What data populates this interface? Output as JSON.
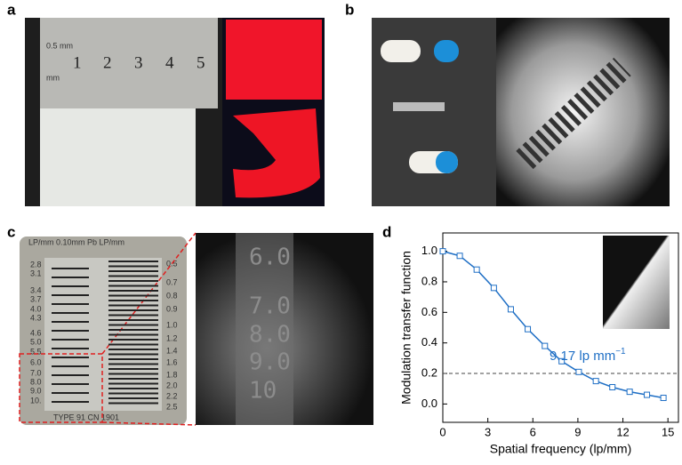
{
  "panels": {
    "a": "a",
    "b": "b",
    "c": "c",
    "d": "d"
  },
  "photo_a": {
    "ruler_numbers": [
      "1",
      "2",
      "3",
      "4",
      "5"
    ],
    "ruler_scale": "0.5 mm",
    "ruler_unit": "mm"
  },
  "photo_c": {
    "gauge_top": "LP/mm  0.10mm  Pb  LP/mm",
    "gauge_bottom": "TYPE 91    CN 1901",
    "left_labels": [
      "2.8",
      "3.1",
      "3.4",
      "3.7",
      "4.0",
      "4.3",
      "4.6",
      "5.0",
      "5.5",
      "6.0",
      "7.0",
      "8.0",
      "9.0",
      "10."
    ],
    "right_labels": [
      "0.5",
      "0.7",
      "0.8",
      "0.9",
      "1.0",
      "1.2",
      "1.4",
      "1.6",
      "1.8",
      "2.0",
      "2.2",
      "2.5"
    ],
    "zoom_labels": [
      "6.0",
      "7.0",
      "8.0",
      "9.0",
      "10"
    ]
  },
  "chart_data": {
    "type": "line",
    "x_label": "Spatial frequency (lp/mm)",
    "y_label": "Modulation transfer function",
    "x": [
      0,
      1.13,
      2.26,
      3.4,
      4.53,
      5.66,
      6.8,
      7.92,
      9.06,
      10.2,
      11.3,
      12.45,
      13.6,
      14.7
    ],
    "values": [
      1.0,
      0.97,
      0.88,
      0.76,
      0.62,
      0.49,
      0.38,
      0.28,
      0.21,
      0.15,
      0.11,
      0.08,
      0.06,
      0.04
    ],
    "color": "#1f6fc5",
    "xlim": [
      0,
      15.7
    ],
    "ylim": [
      -0.12,
      1.12
    ],
    "xticks": [
      0,
      3,
      6,
      9,
      12,
      15
    ],
    "yticks": [
      {
        "value": 0,
        "label": "0.0"
      },
      0.2,
      0.4,
      0.6,
      0.8,
      {
        "value": 1,
        "label": "1.0"
      }
    ],
    "threshold": 0.2,
    "annotation": "9.17 lp mm",
    "annotation_sup": "−1"
  }
}
